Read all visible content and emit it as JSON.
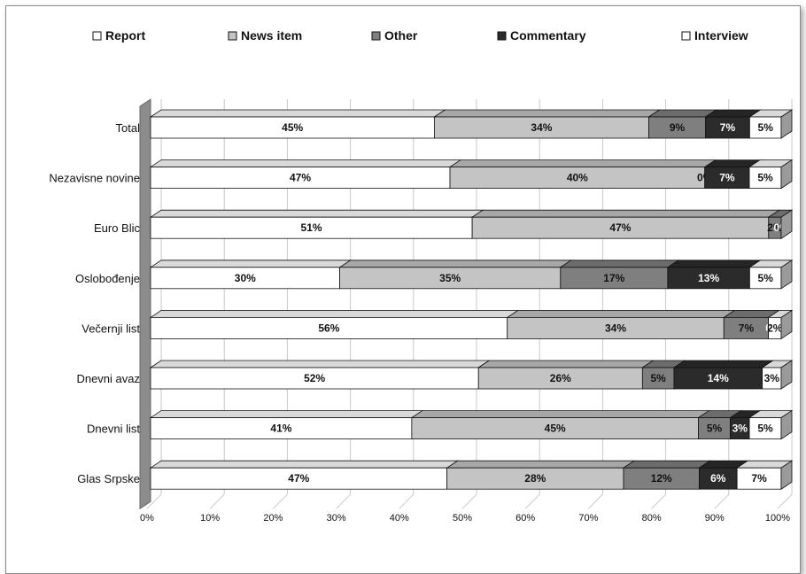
{
  "chart_data": {
    "type": "bar",
    "stacked": "percent",
    "orientation": "horizontal",
    "categories": [
      "Total",
      "Nezavisne novine",
      "Euro Blic",
      "Oslobođenje",
      "Večernji list",
      "Dnevni avaz",
      "Dnevni list",
      "Glas Srpske"
    ],
    "series": [
      {
        "name": "Report",
        "color": "#ffffff",
        "label_color": "#111111",
        "values": [
          45,
          47,
          51,
          30,
          56,
          52,
          41,
          47
        ],
        "labels": [
          "45%",
          "47%",
          "51%",
          "30%",
          "56%",
          "52%",
          "41%",
          "47%"
        ]
      },
      {
        "name": "News item",
        "color": "#c4c4c4",
        "label_color": "#111111",
        "values": [
          34,
          40,
          47,
          35,
          34,
          26,
          45,
          28
        ],
        "labels": [
          "34%",
          "40%",
          "47%",
          "35%",
          "34%",
          "26%",
          "45%",
          "28%"
        ]
      },
      {
        "name": "Other",
        "color": "#7f7f7f",
        "label_color": "#111111",
        "values": [
          9,
          0,
          2,
          17,
          7,
          5,
          5,
          12
        ],
        "labels": [
          "9%",
          "0%",
          "2%",
          "17%",
          "7%",
          "5%",
          "5%",
          "12%"
        ]
      },
      {
        "name": "Commentary",
        "color": "#2b2b2b",
        "label_color": "#ffffff",
        "values": [
          7,
          7,
          0,
          13,
          0,
          14,
          3,
          6
        ],
        "labels": [
          "7%",
          "7%",
          "0%",
          "13%",
          "0",
          "14%",
          "3%",
          "6%"
        ]
      },
      {
        "name": "Interview",
        "color": "#ffffff",
        "label_color": "#111111",
        "values": [
          5,
          5,
          0,
          5,
          2,
          3,
          5,
          7
        ],
        "labels": [
          "5%",
          "5%",
          "",
          "5%",
          "2%",
          "3%",
          "5%",
          "7%"
        ]
      }
    ],
    "x_ticks": [
      "0%",
      "10%",
      "20%",
      "30%",
      "40%",
      "50%",
      "60%",
      "70%",
      "80%",
      "90%",
      "100%"
    ],
    "xlim": [
      0,
      100
    ],
    "grid": true,
    "legend_position": "top",
    "style": "3d"
  }
}
